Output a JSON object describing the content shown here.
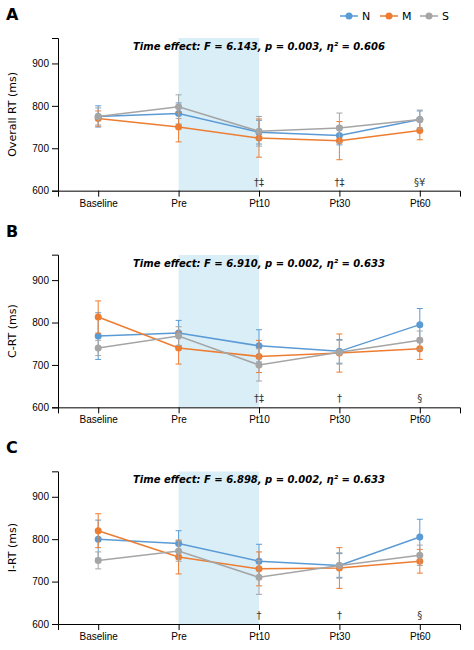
{
  "chart_data": [
    {
      "type": "line",
      "title": "A",
      "subtitle": "Time effect: F = 6.143, p = 0.003, η² = 0.606",
      "y_label": "Overall RT (ms)",
      "categories": [
        "Baseline",
        "Pre",
        "Pt10",
        "Pt30",
        "Pt60"
      ],
      "series": [
        {
          "name": "N",
          "color": "#5b9bd5",
          "marker": "circle",
          "line_style": "solid",
          "values": [
            775,
            782,
            738,
            730,
            768
          ],
          "errors": [
            25,
            25,
            28,
            22,
            20
          ]
        },
        {
          "name": "M",
          "color": "#ed7d31",
          "marker": "circle",
          "line_style": "solid",
          "values": [
            770,
            750,
            724,
            718,
            742
          ],
          "errors": [
            18,
            35,
            45,
            45,
            22
          ]
        },
        {
          "name": "S",
          "color": "#a5a5a5",
          "marker": "circle",
          "line_style": "solid",
          "values": [
            775,
            798,
            740,
            748,
            768
          ],
          "errors": [
            20,
            28,
            35,
            35,
            22
          ]
        }
      ],
      "annotations": [
        {
          "x": "Pt10",
          "text": "†‡"
        },
        {
          "x": "Pt30",
          "text": "†‡"
        },
        {
          "x": "Pt60",
          "text": "§¥"
        }
      ],
      "shade": {
        "from": "Pre",
        "to": "Pt10",
        "color": "#daeef8"
      },
      "ylim": [
        600,
        960
      ],
      "yticks": [
        600,
        700,
        800,
        900
      ],
      "grid": false,
      "legend": "top-right"
    },
    {
      "type": "line",
      "title": "B",
      "subtitle": "Time effect: F = 6.910, p = 0.002, η² = 0.633",
      "y_label": "C-RT (ms)",
      "categories": [
        "Baseline",
        "Pre",
        "Pt10",
        "Pt30",
        "Pt60"
      ],
      "series": [
        {
          "name": "N",
          "color": "#5b9bd5",
          "marker": "circle",
          "line_style": "solid",
          "values": [
            768,
            775,
            745,
            732,
            795
          ],
          "errors": [
            55,
            30,
            38,
            28,
            38
          ]
        },
        {
          "name": "M",
          "color": "#ed7d31",
          "marker": "circle",
          "line_style": "solid",
          "values": [
            813,
            740,
            720,
            728,
            738
          ],
          "errors": [
            38,
            38,
            38,
            45,
            25
          ]
        },
        {
          "name": "S",
          "color": "#a5a5a5",
          "marker": "circle",
          "line_style": "solid",
          "values": [
            740,
            768,
            700,
            730,
            758
          ],
          "errors": [
            18,
            22,
            38,
            28,
            22
          ]
        }
      ],
      "annotations": [
        {
          "x": "Pt10",
          "text": "†‡"
        },
        {
          "x": "Pt30",
          "text": "†"
        },
        {
          "x": "Pt60",
          "text": "§"
        }
      ],
      "shade": {
        "from": "Pre",
        "to": "Pt10",
        "color": "#daeef8"
      },
      "ylim": [
        600,
        960
      ],
      "yticks": [
        600,
        700,
        800,
        900
      ],
      "grid": false
    },
    {
      "type": "line",
      "title": "C",
      "subtitle": "Time effect: F = 6.898, p = 0.002, η² = 0.633",
      "y_label": "I-RT (ms)",
      "categories": [
        "Baseline",
        "Pre",
        "Pt10",
        "Pt30",
        "Pt60"
      ],
      "series": [
        {
          "name": "N",
          "color": "#5b9bd5",
          "marker": "circle",
          "line_style": "solid",
          "values": [
            800,
            790,
            748,
            738,
            805
          ],
          "errors": [
            45,
            30,
            40,
            28,
            42
          ]
        },
        {
          "name": "M",
          "color": "#ed7d31",
          "marker": "circle",
          "line_style": "solid",
          "values": [
            820,
            758,
            730,
            732,
            748
          ],
          "errors": [
            40,
            40,
            40,
            48,
            28
          ]
        },
        {
          "name": "S",
          "color": "#a5a5a5",
          "marker": "circle",
          "line_style": "solid",
          "values": [
            750,
            772,
            710,
            738,
            762
          ],
          "errors": [
            20,
            24,
            40,
            30,
            24
          ]
        }
      ],
      "annotations": [
        {
          "x": "Pt10",
          "text": "†"
        },
        {
          "x": "Pt30",
          "text": "†"
        },
        {
          "x": "Pt60",
          "text": "§"
        }
      ],
      "shade": {
        "from": "Pre",
        "to": "Pt10",
        "color": "#daeef8"
      },
      "ylim": [
        600,
        960
      ],
      "yticks": [
        600,
        700,
        800,
        900
      ],
      "grid": false
    }
  ]
}
